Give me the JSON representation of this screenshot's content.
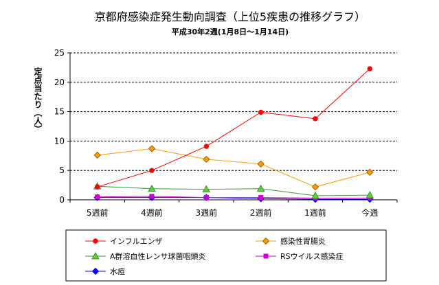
{
  "chart_data": {
    "type": "line",
    "title": "京都府感染症発生動向調査（上位5疾患の推移グラフ）",
    "subtitle": "平成30年2週(1月8日～1月14日)",
    "ylabel": "定点当たり（人）",
    "xlabel": "",
    "ylim": [
      0,
      25
    ],
    "yticks": [
      0,
      5,
      10,
      15,
      20,
      25
    ],
    "grid": true,
    "legend_position": "bottom",
    "categories": [
      "5週前",
      "4週前",
      "3週前",
      "2週前",
      "1週前",
      "今週"
    ],
    "series": [
      {
        "name": "インフルエンザ",
        "color": "#ff0000",
        "marker": "circle",
        "values": [
          2.2,
          5.0,
          9.1,
          14.9,
          13.8,
          22.3
        ]
      },
      {
        "name": "感染性胃腸炎",
        "color": "#ff9900",
        "marker": "diamond",
        "values": [
          7.6,
          8.7,
          6.9,
          6.1,
          2.2,
          4.7
        ]
      },
      {
        "name": "A群溶血性レンサ球菌咽頭炎",
        "color": "#339933",
        "marker": "triangle",
        "values": [
          2.3,
          1.9,
          1.8,
          1.9,
          0.7,
          0.8
        ]
      },
      {
        "name": "RSウイルス感染症",
        "color": "#cc00cc",
        "marker": "square",
        "values": [
          0.5,
          0.6,
          0.4,
          0.4,
          0.3,
          0.3
        ]
      },
      {
        "name": "水痘",
        "color": "#0000ff",
        "marker": "diamond",
        "values": [
          0.4,
          0.4,
          0.4,
          0.2,
          0.1,
          0.1
        ]
      }
    ]
  }
}
